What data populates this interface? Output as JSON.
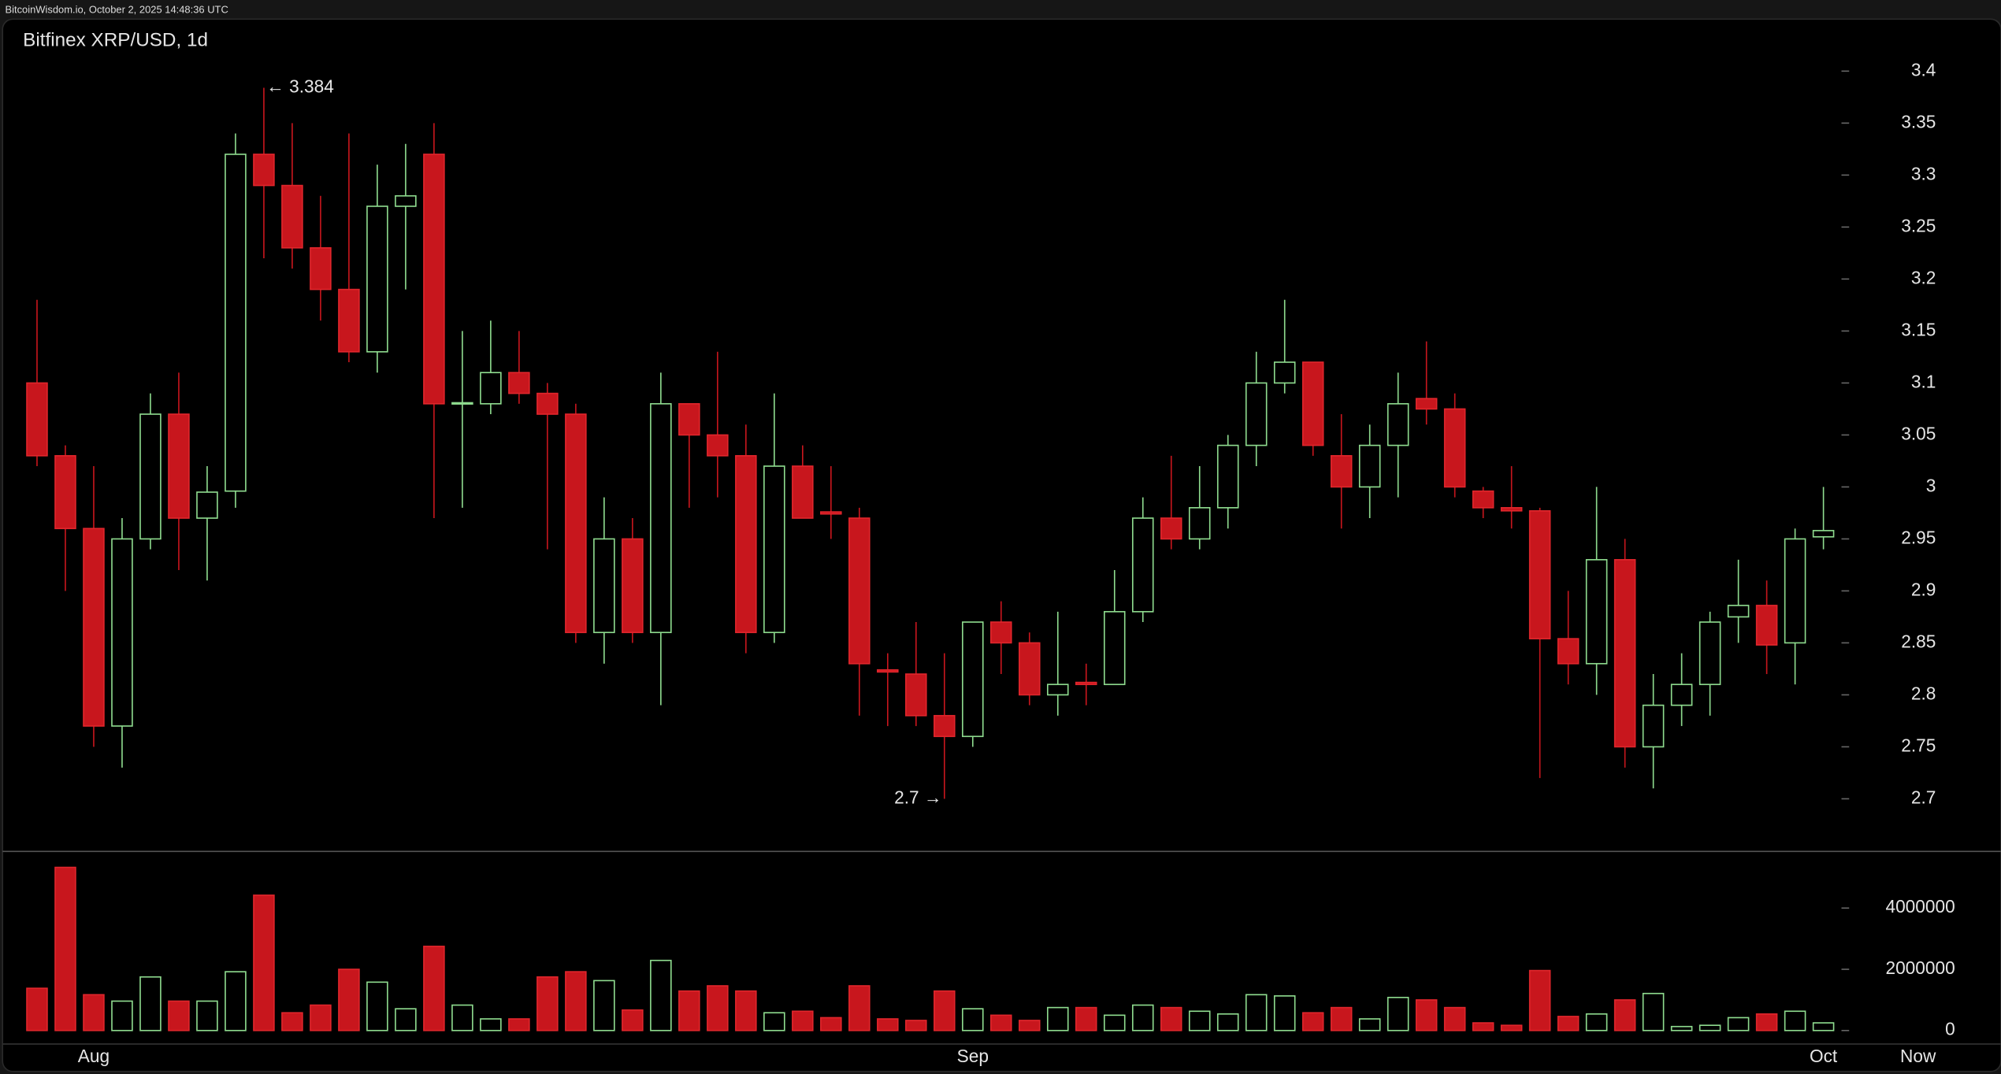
{
  "header": "BitcoinWisdom.io, October 2, 2025 14:48:36 UTC",
  "chart_data": {
    "type": "candlestick",
    "title": "Bitfinex XRP/USD, 1d",
    "categories": [
      null,
      null,
      "Aug",
      null,
      null,
      null,
      null,
      null,
      null,
      null,
      null,
      null,
      null,
      null,
      null,
      null,
      null,
      null,
      null,
      null,
      null,
      null,
      null,
      null,
      null,
      null,
      null,
      null,
      null,
      null,
      null,
      null,
      null,
      "Sep",
      null,
      null,
      null,
      null,
      null,
      null,
      null,
      null,
      null,
      null,
      null,
      null,
      null,
      null,
      null,
      null,
      null,
      null,
      null,
      null,
      null,
      null,
      null,
      null,
      null,
      null,
      null,
      null,
      null,
      "Oct"
    ],
    "now_label": "Now",
    "open": [
      3.1,
      3.03,
      2.96,
      2.77,
      2.95,
      3.07,
      2.97,
      2.996,
      3.32,
      3.29,
      3.23,
      3.19,
      3.13,
      3.27,
      3.32,
      3.08,
      3.08,
      3.11,
      3.09,
      3.07,
      2.86,
      2.95,
      2.86,
      3.08,
      3.05,
      3.03,
      2.86,
      3.02,
      2.976,
      2.97,
      2.824,
      2.82,
      2.78,
      2.76,
      2.87,
      2.85,
      2.8,
      2.812,
      2.81,
      2.88,
      2.97,
      2.95,
      2.98,
      3.04,
      3.1,
      3.12,
      3.03,
      3.0,
      3.04,
      3.085,
      3.075,
      2.996,
      2.98,
      2.977,
      2.854,
      2.83,
      2.93,
      2.75,
      2.79,
      2.81,
      2.875,
      2.886,
      2.85,
      2.952
    ],
    "high": [
      3.18,
      3.04,
      3.02,
      2.97,
      3.09,
      3.11,
      3.02,
      3.34,
      3.384,
      3.35,
      3.28,
      3.34,
      3.31,
      3.33,
      3.35,
      3.15,
      3.16,
      3.15,
      3.1,
      3.08,
      2.99,
      2.97,
      3.11,
      3.08,
      3.13,
      3.06,
      3.09,
      3.04,
      3.02,
      2.98,
      2.84,
      2.87,
      2.84,
      2.87,
      2.89,
      2.86,
      2.88,
      2.83,
      2.92,
      2.99,
      3.03,
      3.02,
      3.05,
      3.13,
      3.18,
      3.12,
      3.07,
      3.06,
      3.11,
      3.14,
      3.09,
      3.0,
      3.02,
      2.98,
      2.9,
      3.0,
      2.95,
      2.82,
      2.84,
      2.88,
      2.93,
      2.91,
      2.96,
      3.0
    ],
    "low": [
      3.02,
      2.9,
      2.75,
      2.73,
      2.94,
      2.92,
      2.91,
      2.98,
      3.22,
      3.21,
      3.16,
      3.12,
      3.11,
      3.19,
      2.97,
      2.98,
      3.07,
      3.08,
      2.94,
      2.85,
      2.83,
      2.85,
      2.79,
      2.98,
      2.99,
      2.84,
      2.85,
      2.97,
      2.95,
      2.78,
      2.77,
      2.77,
      2.7,
      2.75,
      2.82,
      2.79,
      2.78,
      2.79,
      2.81,
      2.87,
      2.94,
      2.94,
      2.96,
      3.02,
      3.09,
      3.03,
      2.96,
      2.97,
      2.99,
      3.06,
      2.99,
      2.97,
      2.96,
      2.72,
      2.81,
      2.8,
      2.73,
      2.71,
      2.77,
      2.78,
      2.85,
      2.82,
      2.81,
      2.94
    ],
    "close": [
      3.03,
      2.96,
      2.77,
      2.95,
      3.07,
      2.97,
      2.995,
      3.32,
      3.29,
      3.23,
      3.19,
      3.13,
      3.27,
      3.28,
      3.08,
      3.081,
      3.11,
      3.09,
      3.07,
      2.86,
      2.95,
      2.86,
      3.08,
      3.05,
      3.03,
      2.86,
      3.02,
      2.97,
      2.974,
      2.83,
      2.822,
      2.78,
      2.76,
      2.87,
      2.85,
      2.8,
      2.81,
      2.81,
      2.88,
      2.97,
      2.95,
      2.98,
      3.04,
      3.1,
      3.12,
      3.04,
      3.0,
      3.04,
      3.08,
      3.075,
      3.0,
      2.98,
      2.977,
      2.854,
      2.83,
      2.93,
      2.75,
      2.79,
      2.81,
      2.87,
      2.886,
      2.848,
      2.95,
      2.958
    ],
    "volume": [
      1380000,
      5330000,
      1170000,
      960000,
      1750000,
      960000,
      960000,
      1920000,
      4420000,
      580000,
      830000,
      2000000,
      1580000,
      710000,
      2750000,
      830000,
      380000,
      380000,
      1750000,
      1920000,
      1630000,
      670000,
      2290000,
      1290000,
      1460000,
      1290000,
      580000,
      630000,
      420000,
      1460000,
      380000,
      330000,
      1290000,
      710000,
      500000,
      330000,
      750000,
      750000,
      500000,
      830000,
      750000,
      630000,
      540000,
      1170000,
      1130000,
      580000,
      750000,
      380000,
      1080000,
      1000000,
      750000,
      250000,
      170000,
      1960000,
      460000,
      540000,
      1000000,
      1210000,
      130000,
      170000,
      420000,
      540000,
      630000,
      250000
    ],
    "up_color": "#8fdc8f",
    "down_color": "#c8161d",
    "ylim": [
      2.65,
      3.45
    ],
    "yticks": [
      2.7,
      2.75,
      2.8,
      2.85,
      2.9,
      2.95,
      3,
      3.05,
      3.1,
      3.15,
      3.2,
      3.25,
      3.3,
      3.35,
      3.4
    ],
    "volume_lim": [
      -420000,
      5830000
    ],
    "volume_ticks": [
      0,
      2000000,
      4000000
    ],
    "annotations": [
      {
        "label": "← 3.384",
        "value": 3.384
      },
      {
        "label": "2.7 →",
        "value": 2.7
      }
    ]
  }
}
